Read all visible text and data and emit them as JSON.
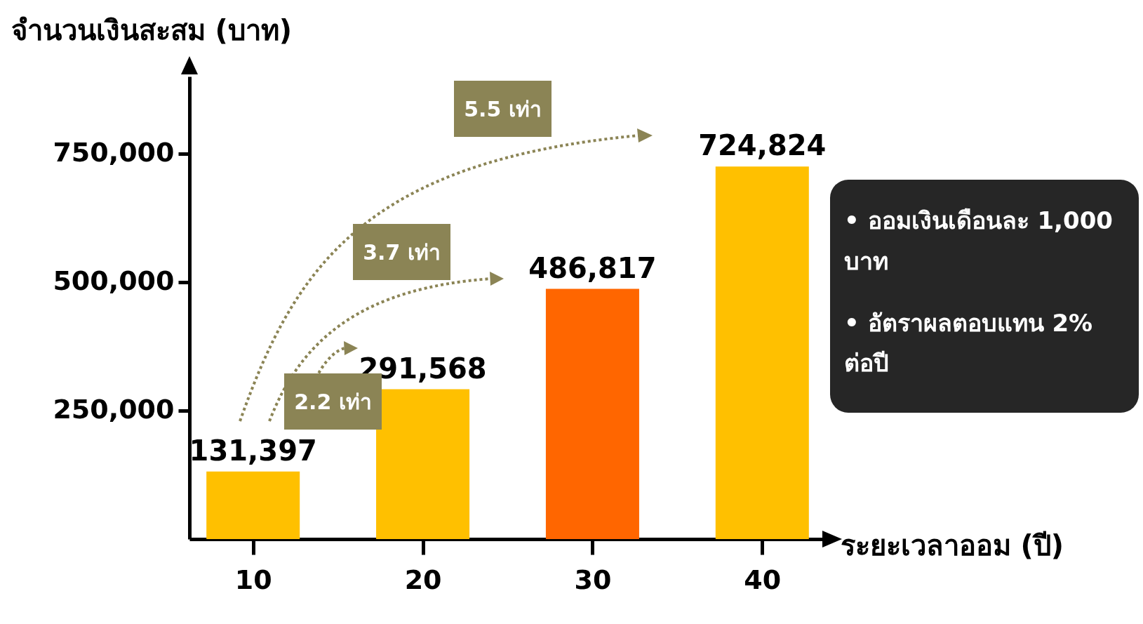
{
  "chart_data": {
    "type": "bar",
    "xlabel": "ระยะเวลาออม (ปี)",
    "ylabel": "จำนวนเงินสะสม (บาท)",
    "categories": [
      "10",
      "20",
      "30",
      "40"
    ],
    "values": [
      131397,
      291568,
      486817,
      724824
    ],
    "colors": [
      "#ffc000",
      "#ffc000",
      "#ff6600",
      "#ffc000"
    ],
    "ylim": [
      0,
      900000
    ],
    "yticks": [
      {
        "value": 250000,
        "label": "250,000"
      },
      {
        "value": 500000,
        "label": "500,000"
      },
      {
        "value": 750000,
        "label": "750,000"
      }
    ],
    "value_labels": [
      "131,397",
      "291,568",
      "486,817",
      "724,824"
    ],
    "grid": false,
    "annotations": [
      "5.5 เท่า",
      "3.7 เท่า",
      "2.2 เท่า",
      "• ออมเงินเดือนละ 1,000 บาท",
      "• อัตราผลตอบแทน 2% ต่อปี"
    ]
  }
}
